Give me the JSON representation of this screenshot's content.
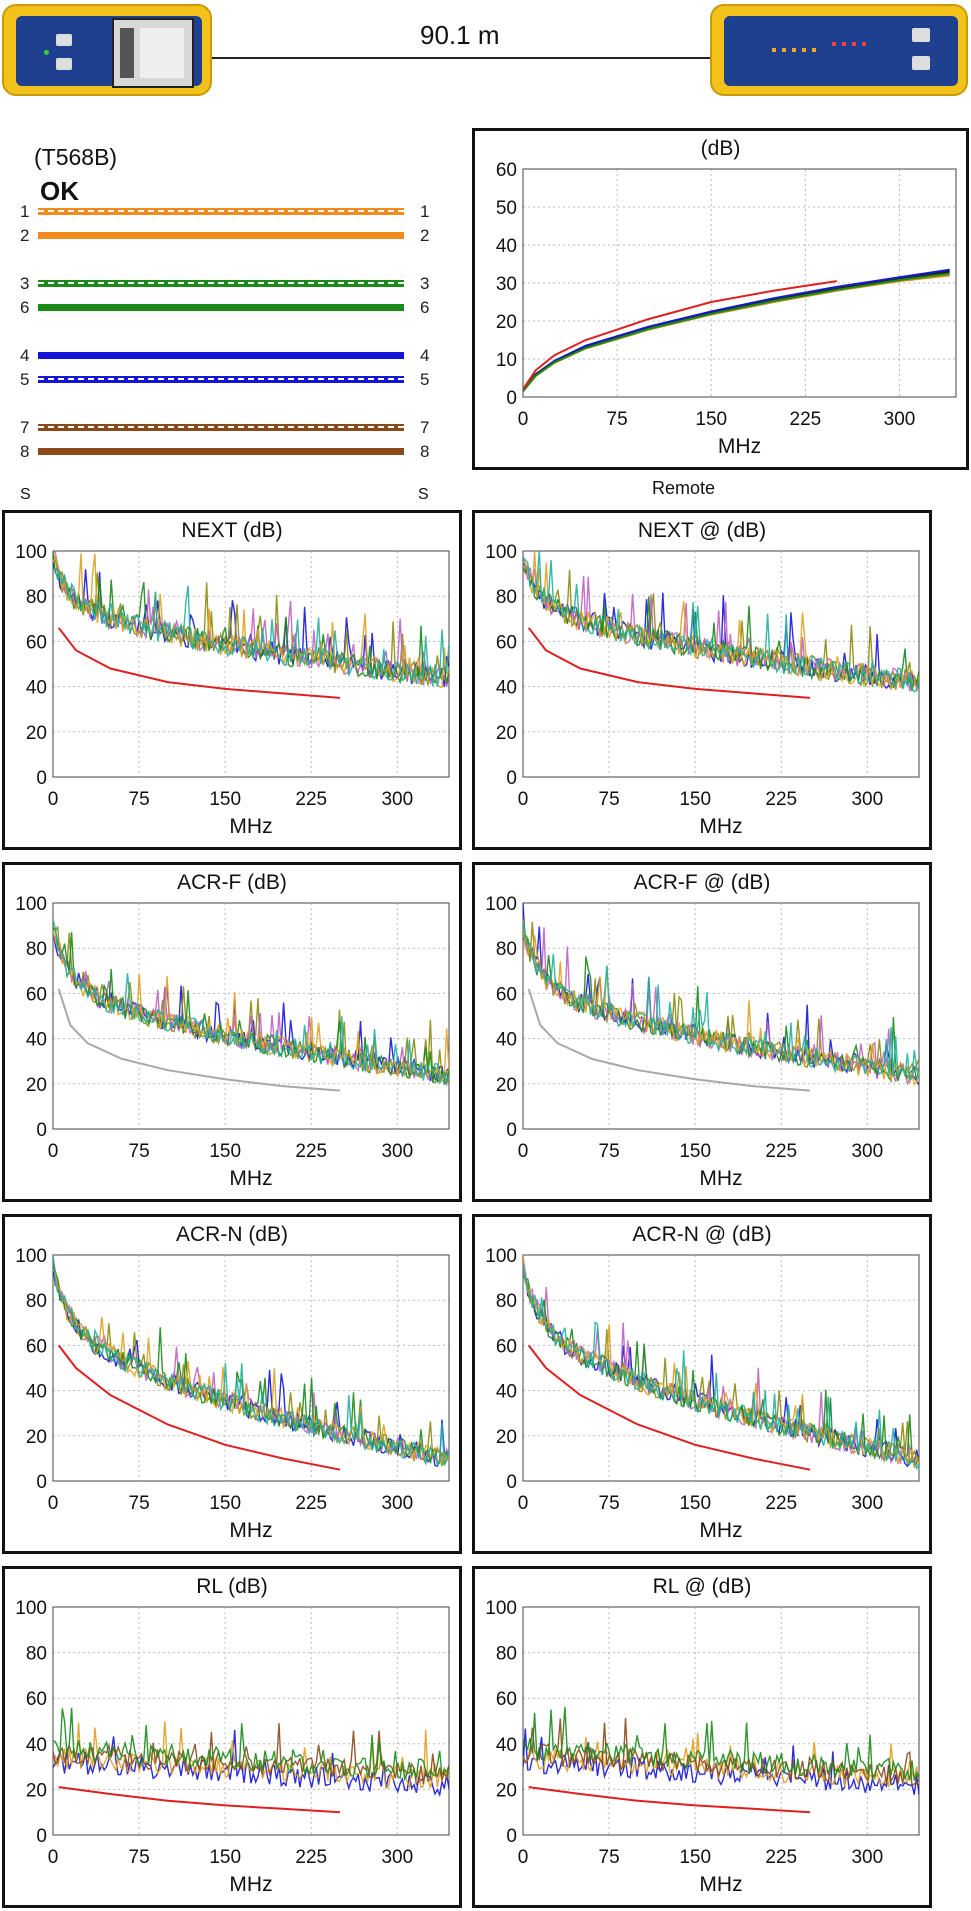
{
  "cable_length": "90.1 m",
  "wiremap": {
    "standard": "(T568B)",
    "status": "OK",
    "shield_left": "S",
    "shield_right": "S",
    "wires": [
      {
        "pin": "1",
        "color": "#f28a1d",
        "striped": true
      },
      {
        "pin": "2",
        "color": "#f28a1d",
        "striped": false
      },
      {
        "pin": "3",
        "color": "#1a8a1a",
        "striped": true
      },
      {
        "pin": "6",
        "color": "#1a8a1a",
        "striped": false
      },
      {
        "pin": "4",
        "color": "#1515d6",
        "striped": false
      },
      {
        "pin": "5",
        "color": "#1515d6",
        "striped": true
      },
      {
        "pin": "7",
        "color": "#8b4a1a",
        "striped": true
      },
      {
        "pin": "8",
        "color": "#8b4a1a",
        "striped": false
      }
    ]
  },
  "remote_label": "Remote",
  "chart_data": [
    {
      "id": "insertion-loss",
      "type": "line",
      "title": "(dB)",
      "xlabel": "MHz",
      "ylim": [
        0,
        60
      ],
      "yticks": [
        0,
        10,
        20,
        30,
        40,
        50,
        60
      ],
      "xlim": [
        0,
        345
      ],
      "xticks": [
        0,
        75,
        150,
        225,
        300
      ],
      "grid": true,
      "limit": {
        "color": "#e02020",
        "x_end": 250,
        "points": [
          [
            0,
            2
          ],
          [
            10,
            7
          ],
          [
            25,
            11
          ],
          [
            50,
            15
          ],
          [
            100,
            20.5
          ],
          [
            150,
            25
          ],
          [
            200,
            28
          ],
          [
            250,
            30.5
          ]
        ]
      },
      "series": [
        {
          "color": "#1515d6",
          "points": [
            [
              0,
              1.5
            ],
            [
              10,
              6
            ],
            [
              25,
              9.5
            ],
            [
              50,
              13.5
            ],
            [
              100,
              18.5
            ],
            [
              150,
              22.5
            ],
            [
              200,
              26
            ],
            [
              250,
              29
            ],
            [
              300,
              31.5
            ],
            [
              340,
              33.5
            ]
          ]
        },
        {
          "color": "#1a1a1a",
          "points": [
            [
              0,
              1.5
            ],
            [
              10,
              5.8
            ],
            [
              25,
              9.2
            ],
            [
              50,
              13
            ],
            [
              100,
              18
            ],
            [
              150,
              22
            ],
            [
              200,
              25.5
            ],
            [
              250,
              28.5
            ],
            [
              300,
              31
            ],
            [
              340,
              33
            ]
          ]
        },
        {
          "color": "#d08a1a",
          "points": [
            [
              0,
              1.5
            ],
            [
              10,
              5.5
            ],
            [
              25,
              9
            ],
            [
              50,
              12.8
            ],
            [
              100,
              17.7
            ],
            [
              150,
              21.7
            ],
            [
              200,
              25
            ],
            [
              250,
              28
            ],
            [
              300,
              30.5
            ],
            [
              340,
              32
            ]
          ]
        },
        {
          "color": "#1a8a1a",
          "points": [
            [
              0,
              1.5
            ],
            [
              10,
              5.6
            ],
            [
              25,
              9.1
            ],
            [
              50,
              12.9
            ],
            [
              100,
              17.9
            ],
            [
              150,
              21.9
            ],
            [
              200,
              25.3
            ],
            [
              250,
              28.2
            ],
            [
              300,
              30.8
            ],
            [
              340,
              32.5
            ]
          ]
        }
      ]
    },
    {
      "id": "next",
      "type": "line",
      "title": "NEXT (dB)",
      "xlabel": "MHz",
      "ylim": [
        0,
        100
      ],
      "yticks": [
        0,
        20,
        40,
        60,
        80,
        100
      ],
      "xlim": [
        0,
        345
      ],
      "xticks": [
        0,
        75,
        150,
        225,
        300
      ],
      "grid": true,
      "limit": {
        "color": "#e02020",
        "points": [
          [
            5,
            66
          ],
          [
            20,
            56
          ],
          [
            50,
            48
          ],
          [
            100,
            42
          ],
          [
            150,
            39
          ],
          [
            200,
            37
          ],
          [
            250,
            35
          ]
        ]
      },
      "noise": {
        "start": [
          95,
          82
        ],
        "end": [
          42,
          52
        ],
        "amp": 10,
        "seed": 11
      }
    },
    {
      "id": "next-remote",
      "type": "line",
      "title": "NEXT @ (dB)",
      "xlabel": "MHz",
      "ylim": [
        0,
        100
      ],
      "yticks": [
        0,
        20,
        40,
        60,
        80,
        100
      ],
      "xlim": [
        0,
        345
      ],
      "xticks": [
        0,
        75,
        150,
        225,
        300
      ],
      "grid": true,
      "limit": {
        "color": "#e02020",
        "points": [
          [
            5,
            66
          ],
          [
            20,
            56
          ],
          [
            50,
            48
          ],
          [
            100,
            42
          ],
          [
            150,
            39
          ],
          [
            200,
            37
          ],
          [
            250,
            35
          ]
        ]
      },
      "noise": {
        "start": [
          95,
          82
        ],
        "end": [
          40,
          50
        ],
        "amp": 10,
        "seed": 23
      }
    },
    {
      "id": "acr-f",
      "type": "line",
      "title": "ACR-F (dB)",
      "xlabel": "MHz",
      "ylim": [
        0,
        100
      ],
      "yticks": [
        0,
        20,
        40,
        60,
        80,
        100
      ],
      "xlim": [
        0,
        345
      ],
      "xticks": [
        0,
        75,
        150,
        225,
        300
      ],
      "grid": true,
      "limit": {
        "color": "#a8a8a8",
        "points": [
          [
            5,
            62
          ],
          [
            15,
            46
          ],
          [
            30,
            38
          ],
          [
            60,
            31
          ],
          [
            100,
            26
          ],
          [
            150,
            22
          ],
          [
            200,
            19
          ],
          [
            250,
            17
          ]
        ]
      },
      "noise": {
        "start": [
          88,
          70
        ],
        "end": [
          22,
          32
        ],
        "amp": 9,
        "seed": 37
      }
    },
    {
      "id": "acr-f-remote",
      "type": "line",
      "title": "ACR-F @ (dB)",
      "xlabel": "MHz",
      "ylim": [
        0,
        100
      ],
      "yticks": [
        0,
        20,
        40,
        60,
        80,
        100
      ],
      "xlim": [
        0,
        345
      ],
      "xticks": [
        0,
        75,
        150,
        225,
        300
      ],
      "grid": true,
      "limit": {
        "color": "#a8a8a8",
        "points": [
          [
            5,
            62
          ],
          [
            15,
            46
          ],
          [
            30,
            38
          ],
          [
            60,
            31
          ],
          [
            100,
            26
          ],
          [
            150,
            22
          ],
          [
            200,
            19
          ],
          [
            250,
            17
          ]
        ]
      },
      "noise": {
        "start": [
          88,
          70
        ],
        "end": [
          22,
          32
        ],
        "amp": 9,
        "seed": 41
      }
    },
    {
      "id": "acr-n",
      "type": "line",
      "title": "ACR-N (dB)",
      "xlabel": "MHz",
      "ylim": [
        0,
        100
      ],
      "yticks": [
        0,
        20,
        40,
        60,
        80,
        100
      ],
      "xlim": [
        0,
        345
      ],
      "xticks": [
        0,
        75,
        150,
        225,
        300
      ],
      "grid": true,
      "limit": {
        "color": "#e02020",
        "points": [
          [
            5,
            60
          ],
          [
            20,
            50
          ],
          [
            50,
            38
          ],
          [
            100,
            25
          ],
          [
            150,
            16
          ],
          [
            200,
            10
          ],
          [
            250,
            5
          ]
        ]
      },
      "noise": {
        "start": [
          95,
          78
        ],
        "end": [
          8,
          22
        ],
        "amp": 9,
        "seed": 53
      }
    },
    {
      "id": "acr-n-remote",
      "type": "line",
      "title": "ACR-N @ (dB)",
      "xlabel": "MHz",
      "ylim": [
        0,
        100
      ],
      "yticks": [
        0,
        20,
        40,
        60,
        80,
        100
      ],
      "xlim": [
        0,
        345
      ],
      "xticks": [
        0,
        75,
        150,
        225,
        300
      ],
      "grid": true,
      "limit": {
        "color": "#e02020",
        "points": [
          [
            5,
            60
          ],
          [
            20,
            50
          ],
          [
            50,
            38
          ],
          [
            100,
            25
          ],
          [
            150,
            16
          ],
          [
            200,
            10
          ],
          [
            250,
            5
          ]
        ]
      },
      "noise": {
        "start": [
          95,
          78
        ],
        "end": [
          8,
          20
        ],
        "amp": 9,
        "seed": 67
      }
    },
    {
      "id": "rl",
      "type": "line",
      "title": "RL (dB)",
      "xlabel": "MHz",
      "ylim": [
        0,
        100
      ],
      "yticks": [
        0,
        20,
        40,
        60,
        80,
        100
      ],
      "xlim": [
        0,
        345
      ],
      "xticks": [
        0,
        75,
        150,
        225,
        300
      ],
      "grid": true,
      "limit": {
        "color": "#e02020",
        "points": [
          [
            5,
            21
          ],
          [
            50,
            18
          ],
          [
            100,
            15
          ],
          [
            150,
            13
          ],
          [
            200,
            11.5
          ],
          [
            250,
            10
          ]
        ]
      },
      "noise": {
        "start": [
          30,
          40
        ],
        "end": [
          20,
          32
        ],
        "amp": 8,
        "seed": 71,
        "rl": true
      }
    },
    {
      "id": "rl-remote",
      "type": "line",
      "title": "RL @ (dB)",
      "xlabel": "MHz",
      "ylim": [
        0,
        100
      ],
      "yticks": [
        0,
        20,
        40,
        60,
        80,
        100
      ],
      "xlim": [
        0,
        345
      ],
      "xticks": [
        0,
        75,
        150,
        225,
        300
      ],
      "grid": true,
      "limit": {
        "color": "#e02020",
        "points": [
          [
            5,
            21
          ],
          [
            50,
            18
          ],
          [
            100,
            15
          ],
          [
            150,
            13
          ],
          [
            200,
            11.5
          ],
          [
            250,
            10
          ]
        ]
      },
      "noise": {
        "start": [
          30,
          40
        ],
        "end": [
          20,
          32
        ],
        "amp": 8,
        "seed": 89,
        "rl": true
      }
    }
  ]
}
